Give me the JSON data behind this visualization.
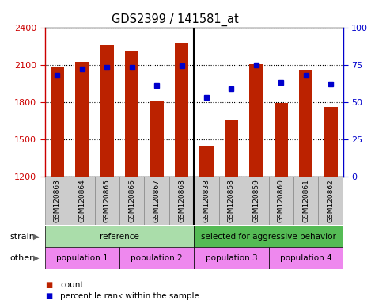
{
  "title": "GDS2399 / 141581_at",
  "samples": [
    "GSM120863",
    "GSM120864",
    "GSM120865",
    "GSM120866",
    "GSM120867",
    "GSM120868",
    "GSM120838",
    "GSM120858",
    "GSM120859",
    "GSM120860",
    "GSM120861",
    "GSM120862"
  ],
  "bar_heights": [
    2080,
    2120,
    2255,
    2215,
    1810,
    2275,
    1440,
    1660,
    2105,
    1790,
    2060,
    1760
  ],
  "bar_color": "#bb2200",
  "ymin": 1200,
  "ymax": 2400,
  "yticks_left": [
    1200,
    1500,
    1800,
    2100,
    2400
  ],
  "yticks_right": [
    0,
    25,
    50,
    75,
    100
  ],
  "percentile_values": [
    68,
    72,
    73,
    73,
    61,
    74,
    53,
    59,
    75,
    63,
    68,
    62
  ],
  "percentile_color": "#0000cc",
  "strain_labels": [
    {
      "text": "reference",
      "start": 0,
      "end": 5,
      "color": "#aaddaa"
    },
    {
      "text": "selected for aggressive behavior",
      "start": 6,
      "end": 11,
      "color": "#55bb55"
    }
  ],
  "other_labels": [
    {
      "text": "population 1",
      "start": 0,
      "end": 2,
      "color": "#ee88ee"
    },
    {
      "text": "population 2",
      "start": 3,
      "end": 5,
      "color": "#ee88ee"
    },
    {
      "text": "population 3",
      "start": 6,
      "end": 8,
      "color": "#ee88ee"
    },
    {
      "text": "population 4",
      "start": 9,
      "end": 11,
      "color": "#ee88ee"
    }
  ],
  "legend_count_color": "#bb2200",
  "legend_percentile_color": "#0000cc",
  "background_color": "#ffffff",
  "plot_bg_color": "#ffffff",
  "tick_bg_color": "#cccccc",
  "tick_border_color": "#888888",
  "left_axis_color": "#cc0000",
  "right_axis_color": "#0000cc"
}
